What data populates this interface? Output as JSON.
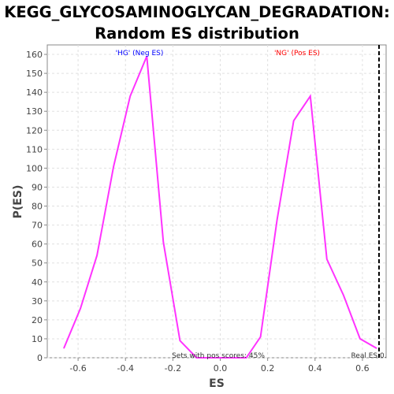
{
  "chart_data": {
    "type": "line",
    "title_line1": "KEGG_GLYCOSAMINOGLYCAN_DEGRADATION:",
    "title_line2": "Random ES distribution",
    "xlabel": "ES",
    "ylabel": "P(ES)",
    "xlim": [
      -0.73,
      0.7
    ],
    "ylim": [
      0,
      165
    ],
    "x_ticks": [
      -0.6,
      -0.4,
      -0.2,
      0.0,
      0.2,
      0.4,
      0.6
    ],
    "x_tick_labels": [
      "-0.6",
      "-0.4",
      "-0.2",
      "0.0",
      "0.2",
      "0.4",
      "0.6"
    ],
    "y_ticks": [
      0,
      10,
      20,
      30,
      40,
      50,
      60,
      70,
      80,
      90,
      100,
      110,
      120,
      130,
      140,
      150,
      160
    ],
    "y_tick_labels": [
      "0",
      "10",
      "20",
      "30",
      "40",
      "50",
      "60",
      "70",
      "80",
      "90",
      "100",
      "110",
      "120",
      "130",
      "140",
      "150",
      "160"
    ],
    "grid": true,
    "line_color": "#ff33ff",
    "series": [
      {
        "x": [
          -0.66,
          -0.59,
          -0.52,
          -0.45,
          -0.38,
          -0.31,
          -0.24,
          -0.17,
          -0.1,
          -0.03,
          0.04,
          0.11,
          0.17,
          0.24,
          0.31,
          0.38,
          0.45,
          0.52,
          0.59,
          0.66
        ],
        "values": [
          5,
          26,
          54,
          101,
          138,
          159,
          61,
          9,
          0,
          0,
          0,
          0,
          11,
          73,
          125,
          138,
          52,
          33,
          10,
          5
        ]
      }
    ],
    "real_es": 0.67,
    "annotations": {
      "neg_label": "'HG' (Neg ES)",
      "neg_color": "#0000ff",
      "pos_label": "'NG' (Pos ES)",
      "pos_color": "#ff0000",
      "pos_scores": "Sets with pos scores: 45%",
      "real_es_label": "Real ES 0."
    }
  }
}
